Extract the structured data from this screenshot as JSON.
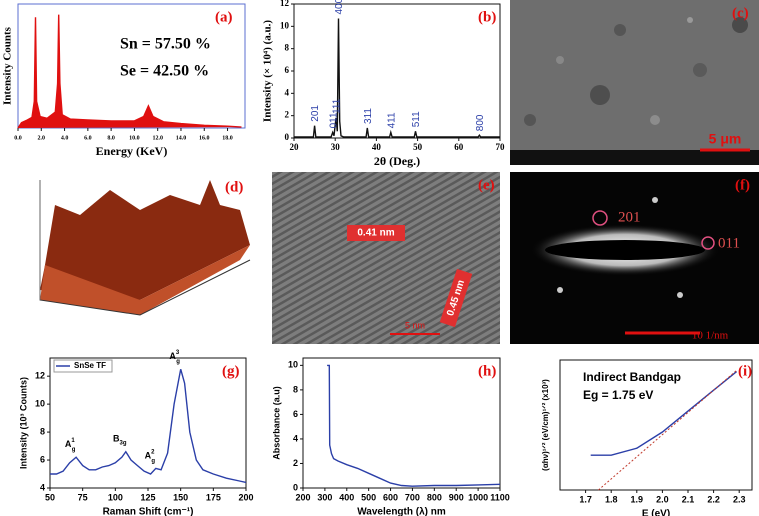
{
  "chart_data": [
    {
      "type": "line",
      "label": "(a)",
      "xlabel": "Energy (KeV)",
      "ylabel": "Intensity Counts",
      "xlim": [
        0,
        19.5
      ],
      "ylim": [
        0,
        14000
      ],
      "xticks": [
        {
          "value": 0,
          "label": "0.0"
        },
        {
          "value": 2,
          "label": "2.0"
        },
        {
          "value": 4,
          "label": "4.0"
        },
        {
          "value": 6,
          "label": "6.0"
        },
        {
          "value": 8,
          "label": "8.0"
        },
        {
          "value": 10,
          "label": "10.0"
        },
        {
          "value": 12,
          "label": "12.0"
        },
        {
          "value": 14,
          "label": "14.0"
        },
        {
          "value": 16,
          "label": "16.0"
        },
        {
          "value": 18,
          "label": "18.0"
        }
      ],
      "texts": [
        "Sn = 57.50 %",
        "Se = 42.50 %"
      ],
      "series": [
        {
          "color": "#e01010",
          "fill": "#e01010",
          "x": [
            0,
            0.3,
            0.8,
            1.2,
            1.4,
            1.5,
            1.6,
            1.9,
            2.5,
            3.2,
            3.4,
            3.5,
            3.6,
            3.8,
            4.5,
            6,
            8,
            10,
            10.8,
            11.2,
            11.6,
            12.5,
            14,
            16,
            18,
            19.2
          ],
          "values": [
            0,
            600,
            900,
            1200,
            3000,
            12500,
            3000,
            1300,
            1100,
            1800,
            5000,
            12800,
            5000,
            1500,
            1000,
            900,
            800,
            800,
            1300,
            2500,
            1300,
            700,
            500,
            300,
            200,
            100
          ]
        }
      ]
    },
    {
      "type": "line",
      "label": "(b)",
      "xlabel": "2θ (Deg.)",
      "ylabel": "Intensity (× 10⁴) (a.u.)",
      "xlim": [
        20,
        70
      ],
      "ylim": [
        0,
        12
      ],
      "xticks": [
        20,
        30,
        40,
        50,
        60,
        70
      ],
      "yticks": [
        0,
        2,
        4,
        6,
        8,
        10,
        12
      ],
      "peak_labels": [
        {
          "text": "201",
          "x": 25,
          "y": 1.1
        },
        {
          "text": "011",
          "x": 29.4,
          "y": 0.5
        },
        {
          "text": "111",
          "x": 30.2,
          "y": 1.8
        },
        {
          "text": "400",
          "x": 30.8,
          "y": 10.7
        },
        {
          "text": "311",
          "x": 37.8,
          "y": 0.9
        },
        {
          "text": "411",
          "x": 43.5,
          "y": 0.5
        },
        {
          "text": "511",
          "x": 49.5,
          "y": 0.6
        },
        {
          "text": "800",
          "x": 65,
          "y": 0.25
        }
      ],
      "series": [
        {
          "color": "#111111",
          "x": [
            20,
            24.7,
            25,
            25.3,
            29,
            29.4,
            29.7,
            30.2,
            30.5,
            30.8,
            31.1,
            31.4,
            32,
            37.5,
            37.8,
            38.1,
            43.2,
            43.5,
            43.8,
            49.2,
            49.5,
            49.8,
            64.7,
            65,
            65.3,
            70
          ],
          "values": [
            0.1,
            0.1,
            1.1,
            0.1,
            0.1,
            0.5,
            0.2,
            1.8,
            0.6,
            10.7,
            1.5,
            0.2,
            0.1,
            0.1,
            0.9,
            0.1,
            0.1,
            0.5,
            0.1,
            0.1,
            0.6,
            0.1,
            0.1,
            0.25,
            0.1,
            0.1
          ]
        }
      ]
    },
    {
      "type": "line",
      "label": "(g)",
      "xlabel": "Raman Shift (cm⁻¹)",
      "ylabel": "Intensity (10³ Counts)",
      "xlim": [
        50,
        200
      ],
      "ylim": [
        4,
        13.3
      ],
      "xticks": [
        50,
        75,
        100,
        125,
        150,
        175,
        200
      ],
      "yticks": [
        4,
        6,
        8,
        10,
        12
      ],
      "legend": "upper left",
      "peak_labels": [
        {
          "base": "A",
          "sub": "g",
          "sup": "1",
          "x": 70,
          "y": 6.2
        },
        {
          "base": "B",
          "sub": "3g",
          "x": 108,
          "y": 6.6
        },
        {
          "base": "A",
          "sub": "g",
          "sup": "2",
          "x": 131,
          "y": 5.4
        },
        {
          "base": "A",
          "sub": "g",
          "sup": "3",
          "x": 150,
          "y": 12.5
        }
      ],
      "series": [
        {
          "name": "SnSe TF",
          "color": "#2b3fa8",
          "x": [
            50,
            55,
            60,
            65,
            70,
            75,
            80,
            85,
            90,
            95,
            100,
            105,
            108,
            112,
            117,
            122,
            127,
            131,
            135,
            140,
            145,
            150,
            153,
            157,
            162,
            167,
            175,
            185,
            195,
            200
          ],
          "values": [
            5.0,
            5.0,
            5.2,
            5.8,
            6.2,
            5.6,
            5.3,
            5.3,
            5.5,
            5.6,
            5.8,
            6.2,
            6.6,
            6.0,
            5.6,
            5.2,
            5.0,
            5.4,
            5.3,
            6.5,
            10,
            12.5,
            11.5,
            8,
            6,
            5.3,
            5.0,
            4.7,
            4.5,
            4.4
          ]
        }
      ]
    },
    {
      "type": "line",
      "label": "(h)",
      "xlabel": "Wavelength (λ) nm",
      "ylabel": "Absorbance (a.u)",
      "xlim": [
        200,
        1100
      ],
      "ylim": [
        0,
        10.6
      ],
      "xticks": [
        200,
        300,
        400,
        500,
        600,
        700,
        800,
        900,
        1000,
        1100
      ],
      "yticks": [
        0,
        2,
        4,
        6,
        8,
        10
      ],
      "series": [
        {
          "color": "#2b3fa8",
          "x": [
            310,
            320,
            322,
            330,
            340,
            360,
            400,
            450,
            500,
            550,
            600,
            650,
            700,
            800,
            900,
            1000,
            1100
          ],
          "values": [
            10,
            10,
            3.5,
            2.8,
            2.4,
            2.2,
            1.9,
            1.6,
            1.2,
            0.8,
            0.4,
            0.2,
            0.15,
            0.2,
            0.2,
            0.25,
            0.3
          ]
        }
      ]
    },
    {
      "type": "line",
      "label": "(i)",
      "xlabel": "E (eV)",
      "ylabel": "(αhν)¹ᐟ² (eV/cm)¹ᐟ² (x10³)",
      "xlim": [
        1.6,
        2.35
      ],
      "ylim": [
        0,
        5.6
      ],
      "xticks": [
        1.7,
        1.8,
        1.9,
        {
          "value": 2,
          "label": "2.0"
        },
        2.1,
        2.2,
        2.3
      ],
      "texts": [
        "Indirect Bandgap",
        "Eg = 1.75 eV"
      ],
      "series": [
        {
          "color": "#2b3fa8",
          "x": [
            1.72,
            1.8,
            1.9,
            2.0,
            2.1,
            2.2,
            2.29
          ],
          "values": [
            1.5,
            1.5,
            1.8,
            2.5,
            3.4,
            4.3,
            5.1
          ]
        },
        {
          "color": "#c0392b",
          "dash": true,
          "x": [
            1.75,
            2.29
          ],
          "values": [
            0,
            5.15
          ]
        }
      ]
    }
  ],
  "panels": {
    "c": {
      "label": "(c)",
      "scale": "5 μm"
    },
    "d": {
      "label": "(d)"
    },
    "e": {
      "label": "(e)",
      "spacing1": "0.41 nm",
      "spacing2": "0.45 nm",
      "scale": "5 nm"
    },
    "f": {
      "label": "(f)",
      "ring1": "201",
      "ring2": "011",
      "scale": "10 1/nm"
    }
  }
}
